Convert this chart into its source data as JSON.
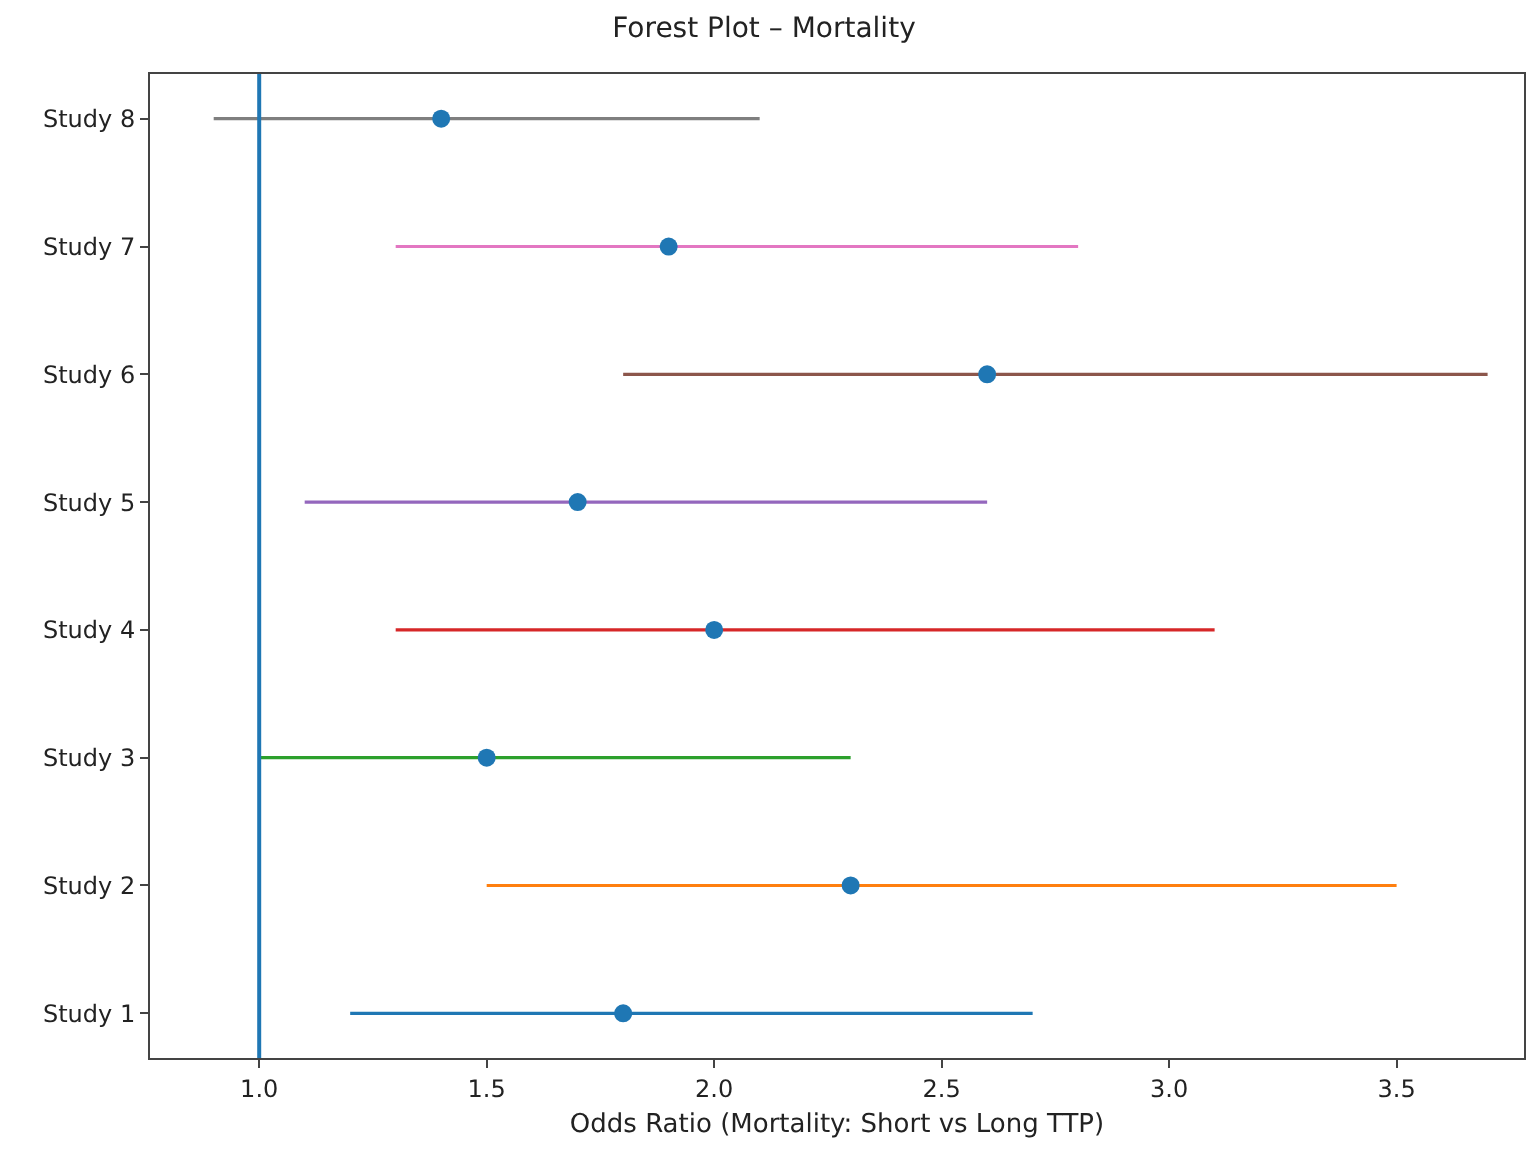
{
  "chart_data": {
    "type": "scatter",
    "orientation": "horizontal",
    "title": "Forest Plot – Mortality",
    "xlabel": "Odds Ratio (Mortality: Short vs Long TTP)",
    "categories": [
      "Study 8",
      "Study 7",
      "Study 6",
      "Study 5",
      "Study 4",
      "Study 3",
      "Study 2",
      "Study 1"
    ],
    "series": [
      {
        "color": "#7f7f7f",
        "colors": [
          "#1f77b4",
          null,
          null,
          null,
          null,
          null,
          null,
          null
        ],
        "values": [
          1.4,
          null,
          null,
          null,
          null,
          null,
          null,
          null
        ],
        "errors": [
          [
            0.9,
            2.1
          ],
          null,
          null,
          null,
          null,
          null,
          null,
          null
        ]
      },
      {
        "color": "#e377c2",
        "colors": [
          null,
          "#1f77b4",
          null,
          null,
          null,
          null,
          null,
          null
        ],
        "values": [
          null,
          1.9,
          null,
          null,
          null,
          null,
          null,
          null
        ],
        "errors": [
          null,
          [
            1.3,
            2.8
          ],
          null,
          null,
          null,
          null,
          null,
          null
        ]
      },
      {
        "color": "#8c564b",
        "colors": [
          null,
          null,
          "#1f77b4",
          null,
          null,
          null,
          null,
          null
        ],
        "values": [
          null,
          null,
          2.6,
          null,
          null,
          null,
          null,
          null
        ],
        "errors": [
          null,
          null,
          [
            1.8,
            3.7
          ],
          null,
          null,
          null,
          null,
          null
        ]
      },
      {
        "color": "#9467bd",
        "colors": [
          null,
          null,
          null,
          "#1f77b4",
          null,
          null,
          null,
          null
        ],
        "values": [
          null,
          null,
          null,
          1.7,
          null,
          null,
          null,
          null
        ],
        "errors": [
          null,
          null,
          null,
          [
            1.1,
            2.6
          ],
          null,
          null,
          null,
          null
        ]
      },
      {
        "color": "#d62728",
        "colors": [
          null,
          null,
          null,
          null,
          "#1f77b4",
          null,
          null,
          null
        ],
        "values": [
          null,
          null,
          null,
          null,
          2.0,
          null,
          null,
          null
        ],
        "errors": [
          null,
          null,
          null,
          null,
          [
            1.3,
            3.1
          ],
          null,
          null,
          null
        ]
      },
      {
        "color": "#2ca02c",
        "colors": [
          null,
          null,
          null,
          null,
          null,
          "#1f77b4",
          null,
          null
        ],
        "values": [
          null,
          null,
          null,
          null,
          null,
          1.5,
          null,
          null
        ],
        "errors": [
          null,
          null,
          null,
          null,
          null,
          [
            1.0,
            2.3
          ],
          null,
          null
        ]
      },
      {
        "color": "#ff7f0e",
        "colors": [
          null,
          null,
          null,
          null,
          null,
          null,
          "#1f77b4",
          null
        ],
        "values": [
          null,
          null,
          null,
          null,
          null,
          null,
          2.3,
          null
        ],
        "errors": [
          null,
          null,
          null,
          null,
          null,
          null,
          [
            1.5,
            3.5
          ],
          null
        ]
      },
      {
        "color": "#1f77b4",
        "colors": [
          null,
          null,
          null,
          null,
          null,
          null,
          null,
          "#1f77b4"
        ],
        "values": [
          null,
          null,
          null,
          null,
          null,
          null,
          null,
          1.8
        ],
        "errors": [
          null,
          null,
          null,
          null,
          null,
          null,
          null,
          [
            1.2,
            2.7
          ]
        ]
      }
    ],
    "ref_lines": [
      {
        "axis": "x",
        "value": 1.0,
        "color": "#1f77b4",
        "line_style": "solid"
      }
    ],
    "xlim": [
      0.76,
      3.78
    ],
    "xticks": [
      {
        "value": 1.0,
        "label": "1.0"
      },
      {
        "value": 1.5,
        "label": "1.5"
      },
      {
        "value": 2.0,
        "label": "2.0"
      },
      {
        "value": 2.5,
        "label": "2.5"
      },
      {
        "value": 3.0,
        "label": "3.0"
      },
      {
        "value": 3.5,
        "label": "3.5"
      }
    ],
    "marker": "circle"
  }
}
